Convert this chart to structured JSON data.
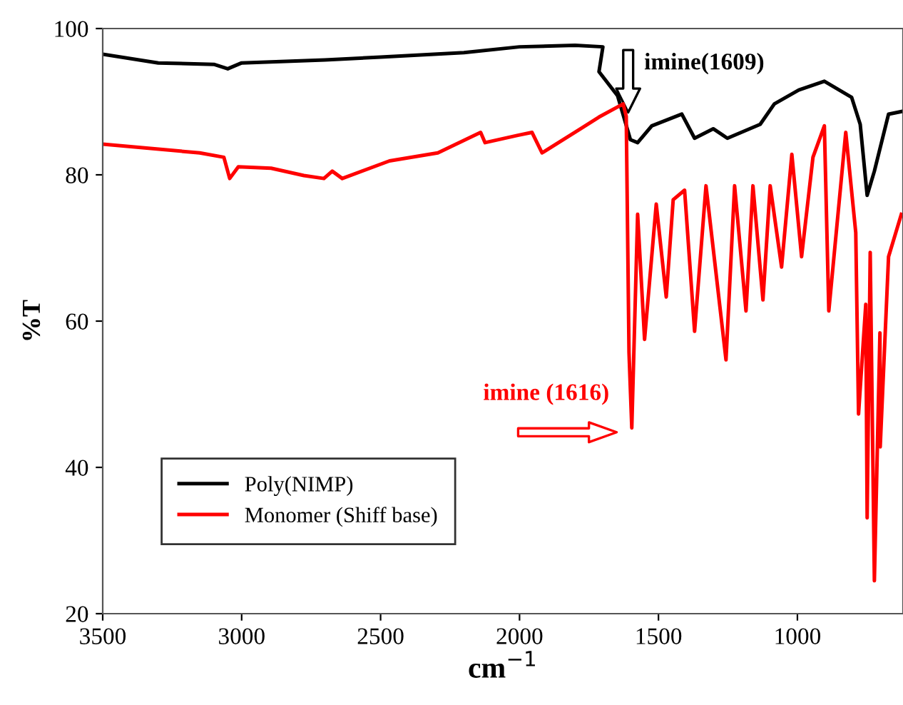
{
  "chart_data": {
    "type": "line",
    "xlabel": "cm$^{−1}$",
    "ylabel": "%T",
    "xlim": [
      3500,
      620
    ],
    "xticks": [
      3500,
      3000,
      2500,
      2000,
      1500,
      1000
    ],
    "ylim": [
      20,
      100
    ],
    "yticks": [
      20,
      40,
      60,
      80,
      100
    ],
    "grid": false,
    "legend": "bottom left",
    "line_style": "solid",
    "series": [
      {
        "name": "Poly(NIMP)",
        "color": "#000000",
        "x": [
          3500,
          3300,
          3100,
          3050,
          3000,
          2700,
          2500,
          2200,
          2000,
          1800,
          1700,
          1714,
          1647,
          1601,
          1575,
          1524,
          1416,
          1370,
          1303,
          1252,
          1134,
          1083,
          995,
          903,
          805,
          774,
          749,
          723,
          672,
          620
        ],
        "values": [
          96.5,
          95.3,
          95.1,
          94.5,
          95.3,
          95.7,
          96.1,
          96.7,
          97.5,
          97.7,
          97.5,
          94.1,
          90.8,
          84.8,
          84.4,
          86.7,
          88.3,
          85.0,
          86.3,
          85.0,
          86.9,
          89.7,
          91.6,
          92.8,
          90.6,
          86.9,
          77.2,
          80.5,
          88.3,
          88.7
        ]
      },
      {
        "name": "Monomer (Shiff base)",
        "color": "#ff0000",
        "x": [
          3500,
          3151,
          3064,
          3043,
          3012,
          2894,
          2776,
          2704,
          2674,
          2638,
          2468,
          2294,
          2140,
          2124,
          2006,
          1955,
          1919,
          1780,
          1714,
          1627,
          1616,
          1606,
          1596,
          1575,
          1550,
          1508,
          1472,
          1447,
          1406,
          1370,
          1329,
          1257,
          1226,
          1185,
          1160,
          1124,
          1098,
          1057,
          1020,
          985,
          944,
          903,
          887,
          826,
          790,
          780,
          754,
          749,
          738,
          723,
          703,
          702,
          672,
          626
        ],
        "values": [
          84.2,
          83.0,
          82.4,
          79.5,
          81.1,
          80.9,
          79.9,
          79.5,
          80.5,
          79.5,
          81.9,
          83.0,
          85.8,
          84.4,
          85.4,
          85.8,
          83.0,
          86.3,
          87.9,
          89.7,
          88.0,
          55.7,
          45.4,
          74.6,
          57.5,
          76.0,
          63.3,
          76.6,
          77.9,
          58.6,
          78.5,
          54.7,
          78.5,
          61.4,
          78.5,
          62.9,
          78.5,
          67.4,
          82.8,
          68.8,
          82.4,
          86.7,
          61.4,
          85.8,
          72.1,
          47.3,
          62.3,
          33.1,
          69.4,
          24.5,
          58.4,
          42.8,
          68.8,
          74.6
        ]
      }
    ],
    "annotations": [
      {
        "text": "imine(1609)",
        "x": 1609,
        "y": 88
      },
      {
        "text": "imine (1616)",
        "x": 1616,
        "y": 44.8
      }
    ]
  }
}
